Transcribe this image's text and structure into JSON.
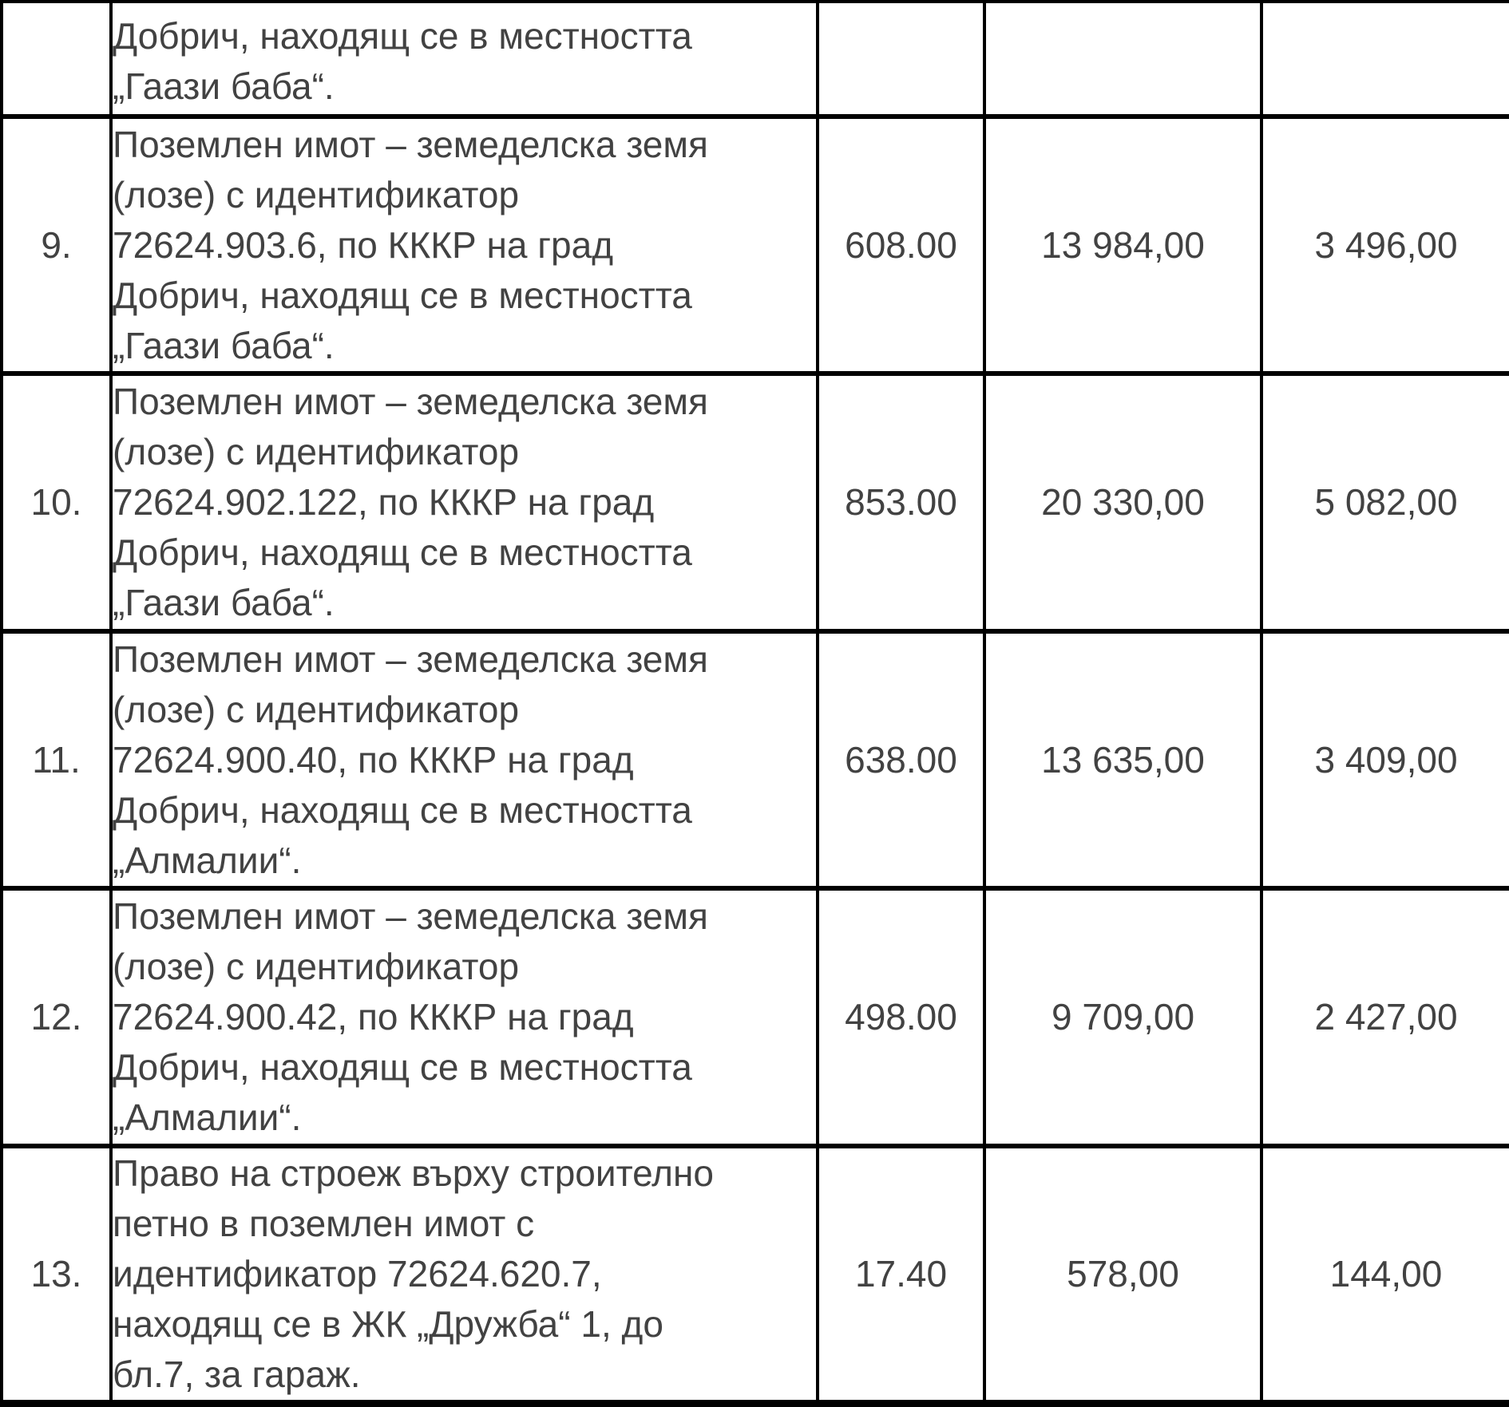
{
  "document": {
    "type": "municipal-property-table",
    "language": "bg",
    "text_color": "#424242",
    "border_color": "#000000",
    "background_color": "#ffffff"
  },
  "table": {
    "rows": [
      {
        "num": "",
        "desc_lines": [
          "Добрич, находящ се в местността",
          "„Гаази баба“."
        ],
        "area": "",
        "value1": "",
        "value2": ""
      },
      {
        "num": "9.",
        "desc_lines": [
          "Поземлен имот – земеделска земя",
          "(лозе) с идентификатор",
          "72624.903.6, по КККР на град",
          "Добрич, находящ се в местността",
          "„Гаази баба“."
        ],
        "area": "608.00",
        "value1": "13 984,00",
        "value2": "3 496,00"
      },
      {
        "num": "10.",
        "desc_lines": [
          "Поземлен имот – земеделска земя",
          "(лозе) с идентификатор",
          "72624.902.122, по КККР на град",
          "Добрич, находящ се в местността",
          "„Гаази баба“."
        ],
        "area": "853.00",
        "value1": "20 330,00",
        "value2": "5 082,00"
      },
      {
        "num": "11.",
        "desc_lines": [
          "Поземлен имот – земеделска земя",
          "(лозе) с идентификатор",
          "72624.900.40, по КККР на град",
          "Добрич, находящ се в местността",
          "„Алмалии“."
        ],
        "area": "638.00",
        "value1": "13 635,00",
        "value2": "3 409,00"
      },
      {
        "num": "12.",
        "desc_lines": [
          "Поземлен имот – земеделска земя",
          "(лозе) с идентификатор",
          "72624.900.42, по КККР на град",
          "Добрич, находящ се в местността",
          "„Алмалии“."
        ],
        "area": "498.00",
        "value1": "9 709,00",
        "value2": "2 427,00"
      },
      {
        "num": "13.",
        "desc_lines": [
          "Право на строеж върху строително",
          "петно в поземлен имот с",
          "идентификатор 72624.620.7,",
          "находящ се в ЖК „Дружба“ 1, до",
          "бл.7, за гараж."
        ],
        "area": "17.40",
        "value1": "578,00",
        "value2": "144,00"
      }
    ]
  }
}
